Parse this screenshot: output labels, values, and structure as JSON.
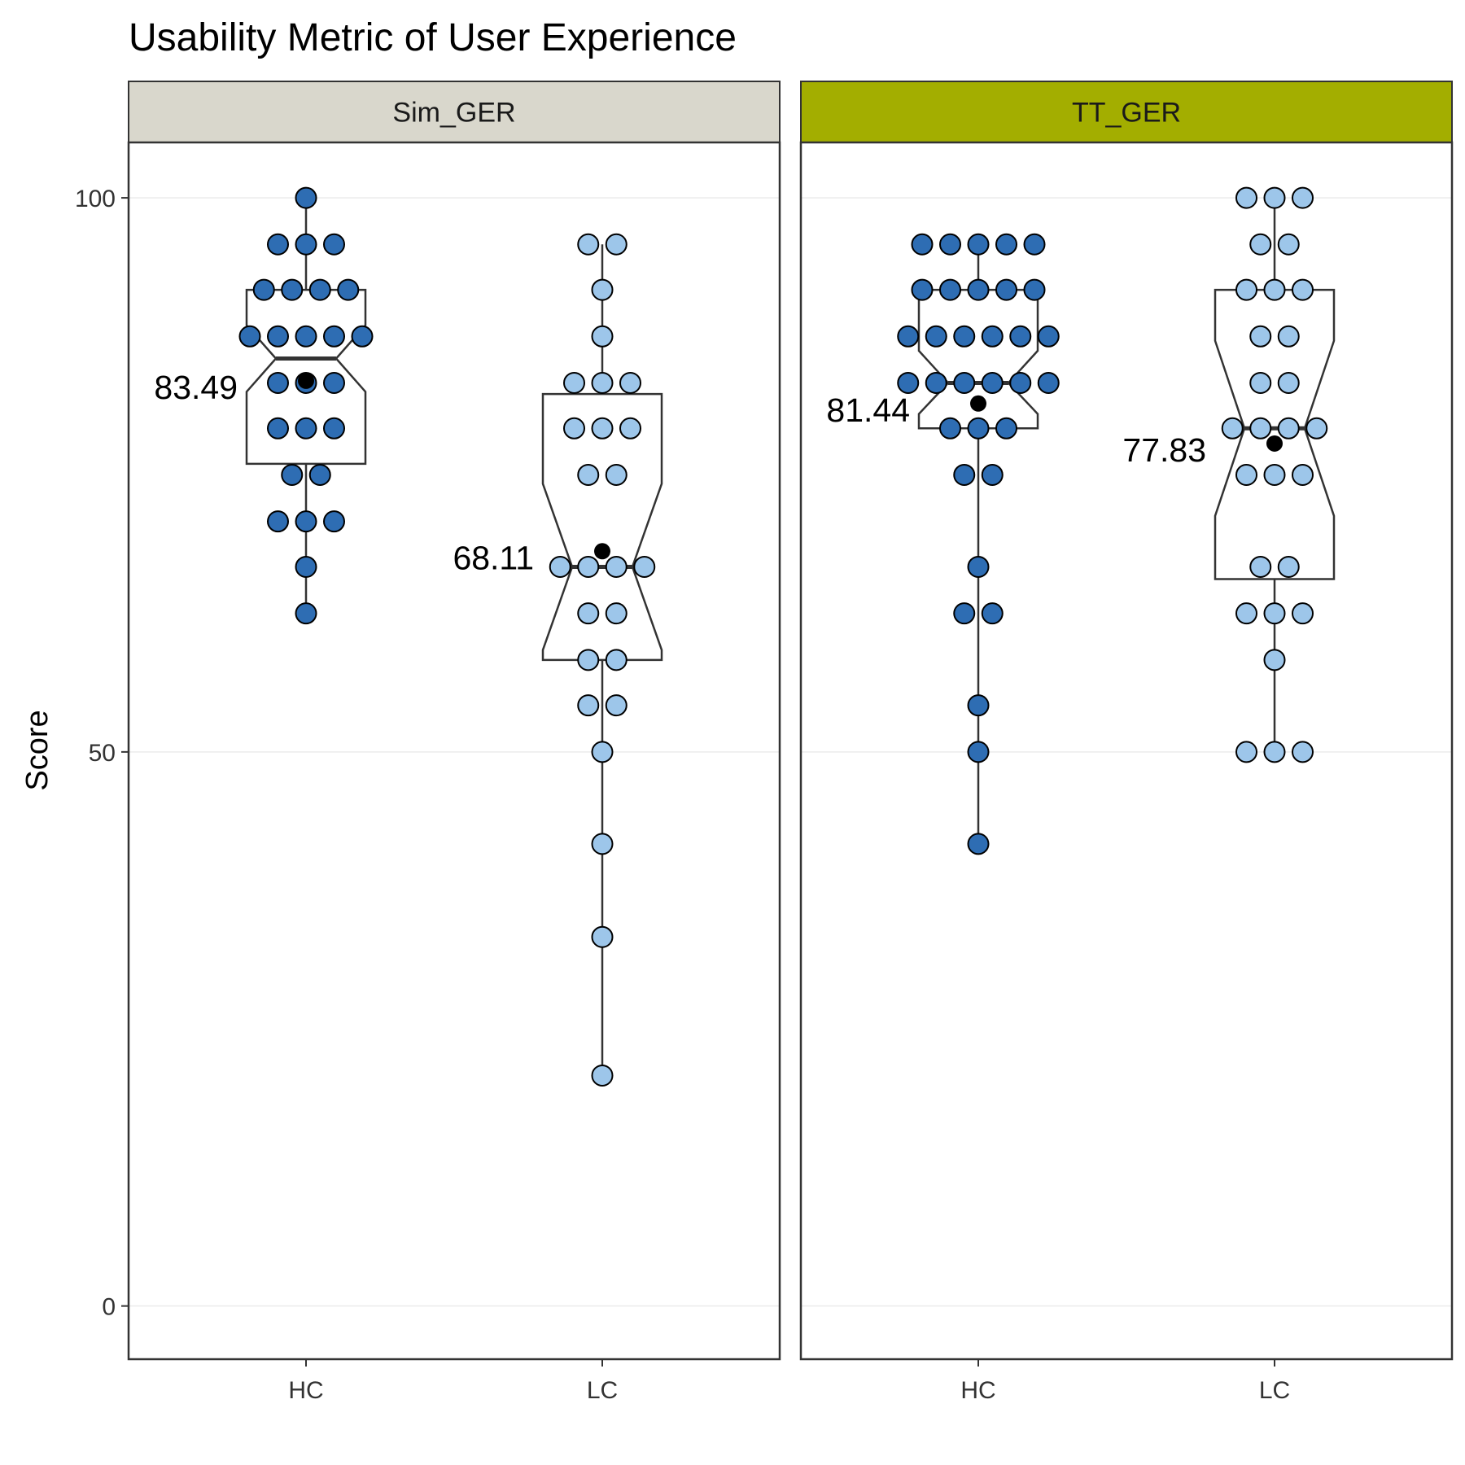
{
  "chart_data": {
    "type": "dotplot-boxplot",
    "title": "Usability Metric of User Experience",
    "ylabel": "Score",
    "xlabel": "",
    "ylim": [
      -4.8,
      105
    ],
    "yticks": [
      0,
      50,
      100
    ],
    "categories": [
      "HC",
      "LC"
    ],
    "grid": true,
    "legend": "none",
    "colors": {
      "HC": "#2e6db3",
      "LC": "#9dc6ea",
      "strip_Sim_GER": "#d9d7cc",
      "strip_TT_GER": "#a3ae00"
    },
    "facets": [
      {
        "name": "Sim_GER",
        "groups": [
          {
            "category": "HC",
            "mean": 83.49,
            "mean_label": "83.49",
            "box": {
              "q1": 76,
              "median": 85.5,
              "q3": 91.7,
              "notch_low": 82.5,
              "notch_high": 88.5,
              "whisker_low": 62.5,
              "whisker_high": 100
            },
            "points": [
              {
                "y": 100,
                "n": 1
              },
              {
                "y": 95.8,
                "n": 3
              },
              {
                "y": 91.7,
                "n": 4
              },
              {
                "y": 87.5,
                "n": 5
              },
              {
                "y": 83.3,
                "n": 3
              },
              {
                "y": 79.2,
                "n": 3
              },
              {
                "y": 75,
                "n": 2
              },
              {
                "y": 70.8,
                "n": 3
              },
              {
                "y": 66.7,
                "n": 1
              },
              {
                "y": 62.5,
                "n": 1
              }
            ]
          },
          {
            "category": "LC",
            "mean": 68.11,
            "mean_label": "68.11",
            "box": {
              "q1": 58.3,
              "median": 66.7,
              "q3": 82.3,
              "notch_low": 59.2,
              "notch_high": 74.2,
              "whisker_low": 20.8,
              "whisker_high": 95.8
            },
            "points": [
              {
                "y": 95.8,
                "n": 2
              },
              {
                "y": 91.7,
                "n": 1
              },
              {
                "y": 87.5,
                "n": 1
              },
              {
                "y": 83.3,
                "n": 3
              },
              {
                "y": 79.2,
                "n": 3
              },
              {
                "y": 75,
                "n": 2
              },
              {
                "y": 66.7,
                "n": 4
              },
              {
                "y": 62.5,
                "n": 2
              },
              {
                "y": 58.3,
                "n": 2
              },
              {
                "y": 54.2,
                "n": 2
              },
              {
                "y": 50,
                "n": 1
              },
              {
                "y": 41.7,
                "n": 1
              },
              {
                "y": 33.3,
                "n": 1
              },
              {
                "y": 20.8,
                "n": 1
              }
            ]
          }
        ]
      },
      {
        "name": "TT_GER",
        "groups": [
          {
            "category": "HC",
            "mean": 81.44,
            "mean_label": "81.44",
            "box": {
              "q1": 79.2,
              "median": 83.3,
              "q3": 91.7,
              "notch_low": 80.5,
              "notch_high": 86.2,
              "whisker_low": 41.7,
              "whisker_high": 95.8
            },
            "points": [
              {
                "y": 95.8,
                "n": 5
              },
              {
                "y": 91.7,
                "n": 5
              },
              {
                "y": 87.5,
                "n": 6
              },
              {
                "y": 83.3,
                "n": 6
              },
              {
                "y": 79.2,
                "n": 3
              },
              {
                "y": 75,
                "n": 2
              },
              {
                "y": 66.7,
                "n": 1
              },
              {
                "y": 62.5,
                "n": 2
              },
              {
                "y": 54.2,
                "n": 1
              },
              {
                "y": 50,
                "n": 1
              },
              {
                "y": 41.7,
                "n": 1
              }
            ]
          },
          {
            "category": "LC",
            "mean": 77.83,
            "mean_label": "77.83",
            "box": {
              "q1": 65.6,
              "median": 79.2,
              "q3": 91.7,
              "notch_low": 71.3,
              "notch_high": 87.1,
              "whisker_low": 50,
              "whisker_high": 100
            },
            "points": [
              {
                "y": 100,
                "n": 3
              },
              {
                "y": 95.8,
                "n": 2
              },
              {
                "y": 91.7,
                "n": 3
              },
              {
                "y": 87.5,
                "n": 2
              },
              {
                "y": 83.3,
                "n": 2
              },
              {
                "y": 79.2,
                "n": 4
              },
              {
                "y": 75,
                "n": 3
              },
              {
                "y": 66.7,
                "n": 2
              },
              {
                "y": 62.5,
                "n": 3
              },
              {
                "y": 58.3,
                "n": 1
              },
              {
                "y": 50,
                "n": 3
              }
            ]
          }
        ]
      }
    ]
  }
}
